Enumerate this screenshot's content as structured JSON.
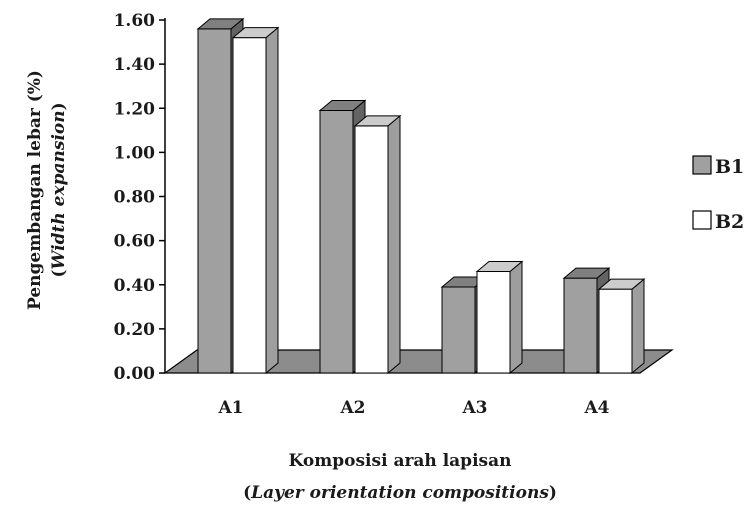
{
  "chart_data": {
    "type": "bar",
    "style": "3d-clustered-column",
    "categories": [
      "A1",
      "A2",
      "A3",
      "A4"
    ],
    "series": [
      {
        "name": "B1",
        "values": [
          1.56,
          1.19,
          0.39,
          0.43
        ],
        "color": "#a0a0a0"
      },
      {
        "name": "B2",
        "values": [
          1.52,
          1.12,
          0.46,
          0.38
        ],
        "color": "#ffffff"
      }
    ],
    "yticks": [
      "0.00",
      "0.20",
      "0.40",
      "0.60",
      "0.80",
      "1.00",
      "1.20",
      "1.40",
      "1.60"
    ],
    "ylim": [
      0,
      1.6
    ],
    "ylabel": {
      "line1": "Pengembangan lebar (%)",
      "line2_open": "(",
      "line2_italic": "Width expansion",
      "line2_close": ")"
    },
    "xlabel": {
      "line1": "Komposisi arah lapisan",
      "line2_open": "(",
      "line2_italic": "Layer orientation compositions",
      "line2_close": ")"
    },
    "legend_position": "right",
    "floor_color": "#8c8c8c",
    "grid": false
  }
}
